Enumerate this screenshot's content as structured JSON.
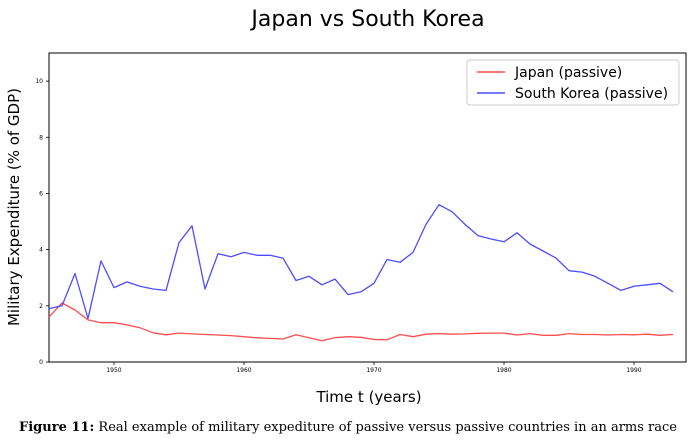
{
  "caption": {
    "label": "Figure 11:",
    "text": "Real example of military expediture of passive versus passive countries in an arms race"
  },
  "chart_data": {
    "type": "line",
    "title": "Japan vs South Korea",
    "xlabel": "Time t (years)",
    "ylabel": "Military Expenditure (% of GDP)",
    "xlim": [
      1945,
      1994
    ],
    "ylim": [
      0,
      11
    ],
    "xticks": [
      1950,
      1960,
      1970,
      1980,
      1990
    ],
    "yticks": [
      0,
      2,
      4,
      6,
      8,
      10
    ],
    "grid": false,
    "legend_position": "top-right",
    "series": [
      {
        "name": "Japan (passive)",
        "color": "#ff4d4d",
        "x": [
          1945,
          1946,
          1947,
          1948,
          1949,
          1950,
          1951,
          1952,
          1953,
          1954,
          1955,
          1956,
          1957,
          1958,
          1959,
          1960,
          1961,
          1962,
          1963,
          1964,
          1965,
          1966,
          1967,
          1968,
          1969,
          1970,
          1971,
          1972,
          1973,
          1974,
          1975,
          1976,
          1977,
          1978,
          1979,
          1980,
          1981,
          1982,
          1983,
          1984,
          1985,
          1986,
          1987,
          1988,
          1989,
          1990,
          1991,
          1992,
          1993
        ],
        "y": [
          1.6,
          2.1,
          1.85,
          1.5,
          1.4,
          1.4,
          1.32,
          1.22,
          1.04,
          0.97,
          1.03,
          1.0,
          0.98,
          0.96,
          0.94,
          0.9,
          0.86,
          0.84,
          0.82,
          0.97,
          0.86,
          0.76,
          0.87,
          0.9,
          0.88,
          0.8,
          0.79,
          0.98,
          0.9,
          0.99,
          1.01,
          0.99,
          1.0,
          1.02,
          1.03,
          1.03,
          0.96,
          1.01,
          0.95,
          0.95,
          1.01,
          0.98,
          0.98,
          0.96,
          0.98,
          0.97,
          0.99,
          0.95,
          0.98
        ]
      },
      {
        "name": "South Korea (passive)",
        "color": "#4d4dff",
        "x": [
          1945,
          1946,
          1947,
          1948,
          1949,
          1950,
          1951,
          1952,
          1953,
          1954,
          1955,
          1956,
          1957,
          1958,
          1959,
          1960,
          1961,
          1962,
          1963,
          1964,
          1965,
          1966,
          1967,
          1968,
          1969,
          1970,
          1971,
          1972,
          1973,
          1974,
          1975,
          1976,
          1977,
          1978,
          1979,
          1980,
          1981,
          1982,
          1983,
          1984,
          1985,
          1986,
          1987,
          1988,
          1989,
          1990,
          1991,
          1992,
          1993
        ],
        "y": [
          1.9,
          2.0,
          3.15,
          1.55,
          3.6,
          2.65,
          2.85,
          2.7,
          2.6,
          2.55,
          4.25,
          4.85,
          2.6,
          3.85,
          3.75,
          3.9,
          3.8,
          3.8,
          3.7,
          2.9,
          3.05,
          2.75,
          2.95,
          2.4,
          2.5,
          2.8,
          3.65,
          3.55,
          3.9,
          4.9,
          5.6,
          5.35,
          4.9,
          4.5,
          4.38,
          4.28,
          4.6,
          4.2,
          3.95,
          3.7,
          3.25,
          3.2,
          3.05,
          2.8,
          2.55,
          2.7,
          2.75,
          2.8,
          2.5
        ]
      }
    ]
  }
}
